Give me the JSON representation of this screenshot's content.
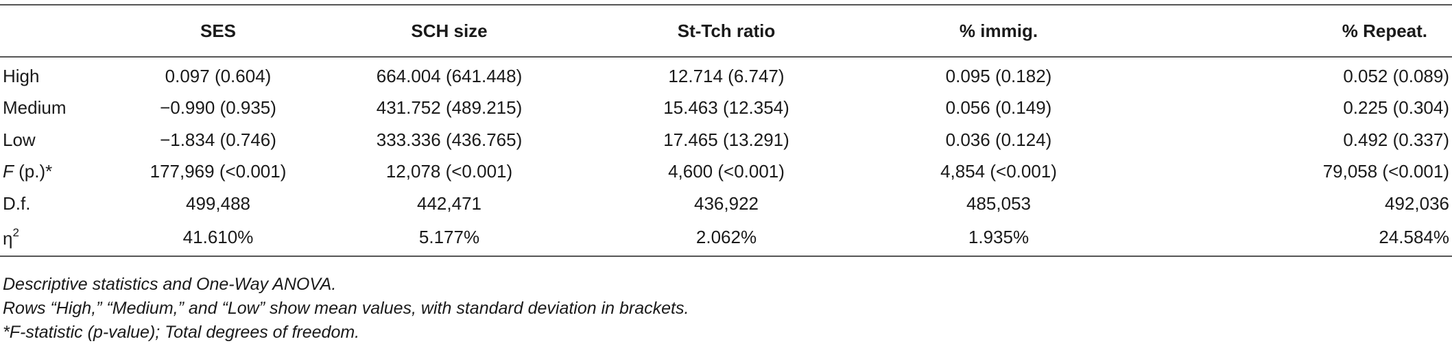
{
  "table": {
    "headers": [
      "",
      "SES",
      "SCH size",
      "St-Tch ratio",
      "% immig.",
      "% Repeat."
    ],
    "rows": [
      {
        "label": "High",
        "cells": [
          "0.097 (0.604)",
          "664.004 (641.448)",
          "12.714 (6.747)",
          "0.095 (0.182)",
          "0.052 (0.089)"
        ]
      },
      {
        "label": "Medium",
        "cells": [
          "−0.990 (0.935)",
          "431.752 (489.215)",
          "15.463 (12.354)",
          "0.056 (0.149)",
          "0.225 (0.304)"
        ]
      },
      {
        "label": "Low",
        "cells": [
          "−1.834 (0.746)",
          "333.336 (436.765)",
          "17.465 (13.291)",
          "0.036 (0.124)",
          "0.492 (0.337)"
        ]
      },
      {
        "label_italic": "F",
        "label_rest": " (p.)*",
        "cells": [
          "177,969 (<0.001)",
          "12,078 (<0.001)",
          "4,600 (<0.001)",
          "4,854 (<0.001)",
          "79,058 (<0.001)"
        ]
      },
      {
        "label": "D.f.",
        "cells": [
          "499,488",
          "442,471",
          "436,922",
          "485,053",
          "492,036"
        ]
      },
      {
        "label_base": "η",
        "label_sup": "2",
        "cells": [
          "41.610%",
          "5.177%",
          "2.062%",
          "1.935%",
          "24.584%"
        ]
      }
    ]
  },
  "notes": [
    "Descriptive statistics and One-Way ANOVA.",
    "Rows “High,” “Medium,” and “Low” show mean values, with standard deviation in brackets.",
    "*F-statistic (p-value); Total degrees of freedom."
  ]
}
